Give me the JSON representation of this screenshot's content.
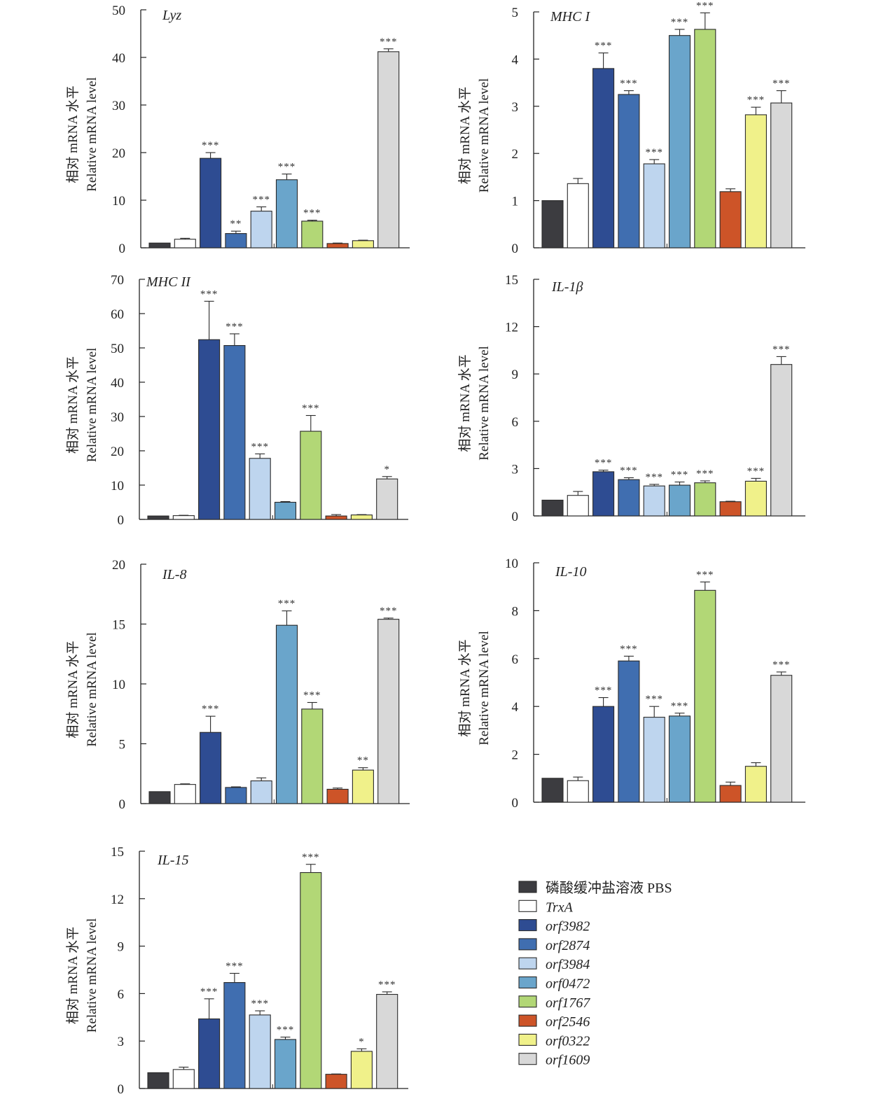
{
  "figure": {
    "y_axis_label_cn": "相对 mRNA 水平",
    "y_axis_label_en": "Relative mRNA level"
  },
  "legend": {
    "position": "bottom-right",
    "items": [
      {
        "label": "磷酸缓冲盐溶液 PBS",
        "color": "#3c3c40",
        "italic": false
      },
      {
        "label": "TrxA",
        "color": "#ffffff",
        "italic": true
      },
      {
        "label": "orf3982",
        "color": "#2e4c92",
        "italic": true
      },
      {
        "label": "orf2874",
        "color": "#406eb0",
        "italic": true
      },
      {
        "label": "orf3984",
        "color": "#bed5ee",
        "italic": true
      },
      {
        "label": "orf0472",
        "color": "#6aa5cb",
        "italic": true
      },
      {
        "label": "orf1767",
        "color": "#b2d776",
        "italic": true
      },
      {
        "label": "orf2546",
        "color": "#cd5428",
        "italic": true
      },
      {
        "label": "orf0322",
        "color": "#f0f18a",
        "italic": true
      },
      {
        "label": "orf1609",
        "color": "#d8d8d8",
        "italic": true
      }
    ]
  },
  "chart_data": [
    {
      "type": "bar",
      "title": "Lyz",
      "categories": [
        "PBS",
        "TrxA",
        "orf3982",
        "orf2874",
        "orf3984",
        "orf0472",
        "orf1767",
        "orf2546",
        "orf0322",
        "orf1609"
      ],
      "values": [
        1.0,
        1.8,
        18.8,
        3.0,
        7.7,
        14.3,
        5.6,
        0.9,
        1.5,
        41.2
      ],
      "errors": [
        0,
        0.2,
        1.2,
        0.5,
        0.9,
        1.2,
        0.2,
        0.1,
        0.1,
        0.6
      ],
      "significance": [
        "",
        "",
        "***",
        "**",
        "***",
        "***",
        "***",
        "",
        "",
        "***"
      ],
      "ylim": [
        0,
        50
      ],
      "yticks": [
        0,
        10,
        20,
        30,
        40,
        50
      ],
      "ylabel": "相对 mRNA 水平 / Relative mRNA level",
      "xlabel": "",
      "grid": false
    },
    {
      "type": "bar",
      "title": "MHC I",
      "categories": [
        "PBS",
        "TrxA",
        "orf3982",
        "orf2874",
        "orf3984",
        "orf0472",
        "orf1767",
        "orf2546",
        "orf0322",
        "orf1609"
      ],
      "values": [
        1.0,
        1.36,
        3.8,
        3.25,
        1.78,
        4.5,
        4.63,
        1.19,
        2.82,
        3.07
      ],
      "errors": [
        0,
        0.11,
        0.33,
        0.08,
        0.09,
        0.13,
        0.35,
        0.06,
        0.16,
        0.26
      ],
      "significance": [
        "",
        "",
        "***",
        "***",
        "***",
        "***",
        "***",
        "",
        "***",
        "***"
      ],
      "ylim": [
        0,
        5
      ],
      "yticks": [
        0,
        1,
        2,
        3,
        4,
        5
      ],
      "ylabel": "相对 mRNA 水平 / Relative mRNA level",
      "xlabel": "",
      "grid": false
    },
    {
      "type": "bar",
      "title": "MHC II",
      "categories": [
        "PBS",
        "TrxA",
        "orf3982",
        "orf2874",
        "orf3984",
        "orf0472",
        "orf1767",
        "orf2546",
        "orf0322",
        "orf1609"
      ],
      "values": [
        1.0,
        1.1,
        52.4,
        50.7,
        17.8,
        5.0,
        25.7,
        1.0,
        1.3,
        11.8
      ],
      "errors": [
        0,
        0.1,
        11.2,
        3.4,
        1.3,
        0.2,
        4.6,
        0.4,
        0.1,
        0.7
      ],
      "significance": [
        "",
        "",
        "***",
        "***",
        "***",
        "",
        "***",
        "",
        "",
        "*"
      ],
      "ylim": [
        0,
        70
      ],
      "yticks": [
        0,
        10,
        20,
        30,
        40,
        50,
        60,
        70
      ],
      "ylabel": "相对 mRNA 水平 / Relative mRNA level",
      "xlabel": "",
      "grid": false
    },
    {
      "type": "bar",
      "title": "IL-1β",
      "categories": [
        "PBS",
        "TrxA",
        "orf3982",
        "orf2874",
        "orf3984",
        "orf0472",
        "orf1767",
        "orf2546",
        "orf0322",
        "orf1609"
      ],
      "values": [
        1.0,
        1.3,
        2.8,
        2.3,
        1.9,
        1.95,
        2.1,
        0.9,
        2.2,
        9.6
      ],
      "errors": [
        0,
        0.25,
        0.1,
        0.12,
        0.1,
        0.2,
        0.12,
        0.03,
        0.18,
        0.5
      ],
      "significance": [
        "",
        "",
        "***",
        "***",
        "***",
        "***",
        "***",
        "",
        "***",
        "***"
      ],
      "ylim": [
        0,
        15
      ],
      "yticks": [
        0,
        3,
        6,
        9,
        12,
        15
      ],
      "ylabel": "相对 mRNA 水平 / Relative mRNA level",
      "xlabel": "",
      "grid": false
    },
    {
      "type": "bar",
      "title": "IL-8",
      "categories": [
        "PBS",
        "TrxA",
        "orf3982",
        "orf2874",
        "orf3984",
        "orf0472",
        "orf1767",
        "orf2546",
        "orf0322",
        "orf1609"
      ],
      "values": [
        1.0,
        1.6,
        5.95,
        1.35,
        1.9,
        14.9,
        7.9,
        1.2,
        2.8,
        15.4
      ],
      "errors": [
        0,
        0.05,
        1.35,
        0.05,
        0.25,
        1.2,
        0.55,
        0.1,
        0.2,
        0.1
      ],
      "significance": [
        "",
        "",
        "***",
        "",
        "",
        "***",
        "***",
        "",
        "**",
        "***"
      ],
      "ylim": [
        0,
        20
      ],
      "yticks": [
        0,
        5,
        10,
        15,
        20
      ],
      "ylabel": "相对 mRNA 水平 / Relative mRNA level",
      "xlabel": "",
      "grid": false
    },
    {
      "type": "bar",
      "title": "IL-10",
      "categories": [
        "PBS",
        "TrxA",
        "orf3982",
        "orf2874",
        "orf3984",
        "orf0472",
        "orf1767",
        "orf2546",
        "orf0322",
        "orf1609"
      ],
      "values": [
        1.0,
        0.9,
        4.0,
        5.9,
        3.55,
        3.6,
        8.85,
        0.7,
        1.5,
        5.3
      ],
      "errors": [
        0,
        0.15,
        0.37,
        0.2,
        0.45,
        0.12,
        0.35,
        0.14,
        0.15,
        0.14
      ],
      "significance": [
        "",
        "",
        "***",
        "***",
        "***",
        "***",
        "***",
        "",
        "",
        "***"
      ],
      "ylim": [
        0,
        10
      ],
      "yticks": [
        0,
        2,
        4,
        6,
        8,
        10
      ],
      "ylabel": "相对 mRNA 水平 / Relative mRNA level",
      "xlabel": "",
      "grid": false
    },
    {
      "type": "bar",
      "title": "IL-15",
      "categories": [
        "PBS",
        "TrxA",
        "orf3982",
        "orf2874",
        "orf3984",
        "orf0472",
        "orf1767",
        "orf2546",
        "orf0322",
        "orf1609"
      ],
      "values": [
        1.0,
        1.2,
        4.4,
        6.7,
        4.65,
        3.1,
        13.65,
        0.9,
        2.35,
        5.95
      ],
      "errors": [
        0,
        0.15,
        1.27,
        0.58,
        0.26,
        0.15,
        0.52,
        0.02,
        0.16,
        0.16
      ],
      "significance": [
        "",
        "",
        "***",
        "***",
        "***",
        "***",
        "***",
        "",
        "*",
        "***"
      ],
      "ylim": [
        0,
        15
      ],
      "yticks": [
        0,
        3,
        6,
        9,
        12,
        15
      ],
      "ylabel": "相对 mRNA 水平 / Relative mRNA level",
      "xlabel": "",
      "grid": false
    }
  ]
}
